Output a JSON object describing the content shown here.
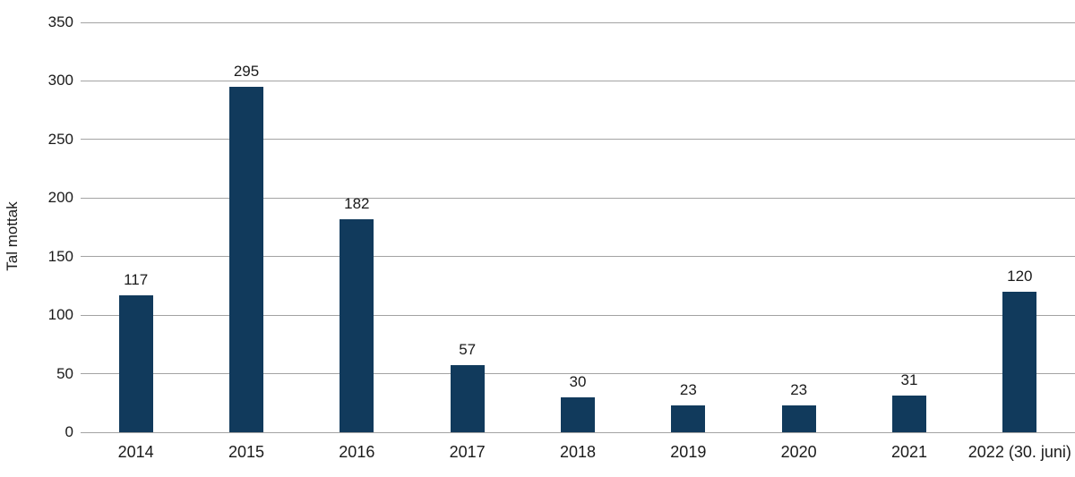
{
  "chart_data": {
    "type": "bar",
    "categories": [
      "2014",
      "2015",
      "2016",
      "2017",
      "2018",
      "2019",
      "2020",
      "2021",
      "2022 (30. juni)"
    ],
    "values": [
      117,
      295,
      182,
      57,
      30,
      23,
      23,
      31,
      120
    ],
    "value_labels": [
      "117",
      "295",
      "182",
      "57",
      "30",
      "23",
      "23",
      "31",
      "120"
    ],
    "title": "",
    "xlabel": "",
    "ylabel": "Tal mottak",
    "ylim": [
      0,
      350
    ],
    "ytick_step": 50,
    "ytick_labels": [
      "0",
      "50",
      "100",
      "150",
      "200",
      "250",
      "300",
      "350"
    ],
    "grid": true,
    "legend_position": "none",
    "bar_color": "#113a5c",
    "gridline_color": "#a3a3a3",
    "axis_line_color": "#a3a3a3",
    "text_color": "#1a1a1a"
  }
}
